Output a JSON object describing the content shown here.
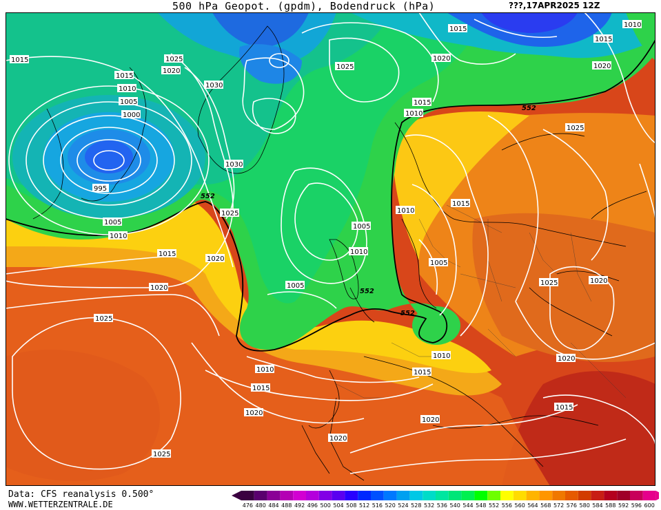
{
  "header": {
    "title": "500 hPa Geopot. (gpdm), Bodendruck (hPa)",
    "date": "???,17APR2025 12Z"
  },
  "footer": {
    "data_source": "Data: CFS reanalysis 0.500°",
    "website": "WWW.WETTERZENTRALE.DE"
  },
  "legend": {
    "unit": "gpdm",
    "values": [
      "476",
      "480",
      "484",
      "488",
      "492",
      "496",
      "500",
      "504",
      "508",
      "512",
      "516",
      "520",
      "524",
      "528",
      "532",
      "536",
      "540",
      "544",
      "548",
      "552",
      "556",
      "560",
      "564",
      "568",
      "572",
      "576",
      "580",
      "584",
      "588",
      "592",
      "596",
      "600"
    ],
    "colors": [
      "#3a0040",
      "#5a006e",
      "#8a0096",
      "#b400b4",
      "#d200d2",
      "#b400dc",
      "#8200e6",
      "#5a00f0",
      "#2800ff",
      "#0028ff",
      "#0050ff",
      "#0078ff",
      "#00a0f0",
      "#00c8e6",
      "#00dcc8",
      "#00e6a0",
      "#00e678",
      "#00f050",
      "#00ff00",
      "#6eff00",
      "#ffff00",
      "#ffdc00",
      "#ffb400",
      "#ff9600",
      "#f07800",
      "#e65a00",
      "#d23c00",
      "#c81e14",
      "#b4001e",
      "#a00028",
      "#c8005a",
      "#e6008c"
    ]
  },
  "isobars": [
    {
      "label": "1015",
      "text": "1015"
    },
    {
      "label": "1025",
      "text": "1025"
    },
    {
      "label": "1020",
      "text": "1020"
    },
    {
      "label": "1030",
      "text": "1030"
    },
    {
      "label": "1015",
      "text": "1015"
    },
    {
      "label": "1010",
      "text": "1010"
    },
    {
      "label": "1005",
      "text": "1005"
    },
    {
      "label": "1000",
      "text": "1000"
    },
    {
      "label": "995",
      "text": "995"
    },
    {
      "label": "1005",
      "text": "1005"
    },
    {
      "label": "1010",
      "text": "1010"
    },
    {
      "label": "1030",
      "text": "1030"
    },
    {
      "label": "1025",
      "text": "1025"
    },
    {
      "label": "1015",
      "text": "1015"
    },
    {
      "label": "1020",
      "text": "1020"
    },
    {
      "label": "1020",
      "text": "1020"
    },
    {
      "label": "1025",
      "text": "1025"
    },
    {
      "label": "1025",
      "text": "1025"
    },
    {
      "label": "1015",
      "text": "1015"
    },
    {
      "label": "1010",
      "text": "1010"
    },
    {
      "label": "1020",
      "text": "1020"
    },
    {
      "label": "1015",
      "text": "1015"
    },
    {
      "label": "1020",
      "text": "1020"
    },
    {
      "label": "1010",
      "text": "1010"
    },
    {
      "label": "1015",
      "text": "1015"
    },
    {
      "label": "1025",
      "text": "1025"
    },
    {
      "label": "1010",
      "text": "1010"
    },
    {
      "label": "1005",
      "text": "1005"
    },
    {
      "label": "1010",
      "text": "1010"
    },
    {
      "label": "1005",
      "text": "1005"
    },
    {
      "label": "1005",
      "text": "1005"
    },
    {
      "label": "1025",
      "text": "1025"
    },
    {
      "label": "1020",
      "text": "1020"
    },
    {
      "label": "1020",
      "text": "1020"
    },
    {
      "label": "1010",
      "text": "1010"
    },
    {
      "label": "1015",
      "text": "1015"
    },
    {
      "label": "1010",
      "text": "1010"
    },
    {
      "label": "1015",
      "text": "1015"
    },
    {
      "label": "1020",
      "text": "1020"
    },
    {
      "label": "1020",
      "text": "1020"
    },
    {
      "label": "1015",
      "text": "1015"
    },
    {
      "label": "1025",
      "text": "1025"
    },
    {
      "label": "1015",
      "text": "1015"
    },
    {
      "label": "1020",
      "text": "1020"
    }
  ],
  "contour_552": "552"
}
